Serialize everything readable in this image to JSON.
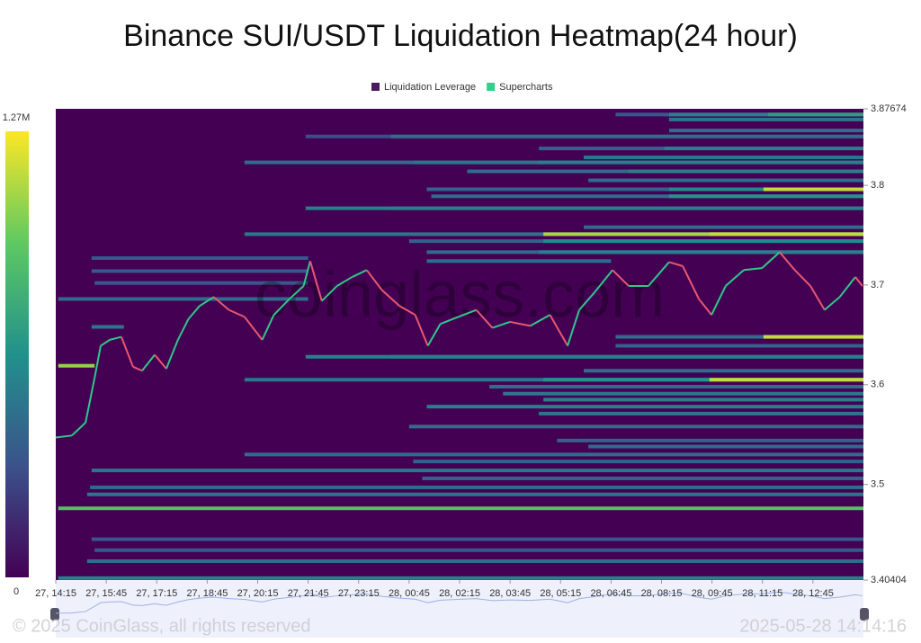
{
  "chart_data": {
    "type": "heatmap",
    "title": "Binance SUI/USDT Liquidation Heatmap(24 hour)",
    "watermark": "coinglass.com",
    "footer_left": "© 2025 CoinGlass, all rights reserved",
    "footer_right": "2025-05-28 14:14:16",
    "legend": [
      {
        "name": "Liquidation Leverage",
        "color": "#4b1a5f"
      },
      {
        "name": "Supercharts",
        "color": "#2ed18b"
      }
    ],
    "colormap": [
      "#440154",
      "#3b528b",
      "#21918c",
      "#5ec962",
      "#fde725"
    ],
    "colorbar_range": [
      0,
      1270000
    ],
    "colorbar_ticks": [
      {
        "value": 1270000,
        "label": "1.27M"
      },
      0
    ],
    "xlim": [
      0,
      16
    ],
    "xticks": [
      {
        "value": 0,
        "label": "27, 14:15"
      },
      {
        "value": 1,
        "label": "27, 15:45"
      },
      {
        "value": 2,
        "label": "27, 17:15"
      },
      {
        "value": 3,
        "label": "27, 18:45"
      },
      {
        "value": 4,
        "label": "27, 20:15"
      },
      {
        "value": 5,
        "label": "27, 21:45"
      },
      {
        "value": 6,
        "label": "27, 23:15"
      },
      {
        "value": 7,
        "label": "28, 00:45"
      },
      {
        "value": 8,
        "label": "28, 02:15"
      },
      {
        "value": 9,
        "label": "28, 03:45"
      },
      {
        "value": 10,
        "label": "28, 05:15"
      },
      {
        "value": 11,
        "label": "28, 06:45"
      },
      {
        "value": 12,
        "label": "28, 08:15"
      },
      {
        "value": 13,
        "label": "28, 09:45"
      },
      {
        "value": 14,
        "label": "28, 11:15"
      },
      {
        "value": 15,
        "label": "28, 12:45"
      }
    ],
    "ylim": [
      3.40404,
      3.87674
    ],
    "yticks": [
      3.40404,
      3.5,
      3.6,
      3.7,
      3.8,
      3.87674
    ],
    "bands": [
      {
        "price": 3.871,
        "start": 11.09,
        "end": 16,
        "value": 350000
      },
      {
        "price": 3.871,
        "start": 12.15,
        "end": 16,
        "value": 550000
      },
      {
        "price": 3.871,
        "start": 14.11,
        "end": 16,
        "value": 700000
      },
      {
        "price": 3.866,
        "start": 12.15,
        "end": 16,
        "value": 500000
      },
      {
        "price": 3.855,
        "start": 12.15,
        "end": 16,
        "value": 450000
      },
      {
        "price": 3.849,
        "start": 4.95,
        "end": 16,
        "value": 300000
      },
      {
        "price": 3.849,
        "start": 6.64,
        "end": 16,
        "value": 450000
      },
      {
        "price": 3.837,
        "start": 9.57,
        "end": 16,
        "value": 400000
      },
      {
        "price": 3.837,
        "start": 12.06,
        "end": 16,
        "value": 550000
      },
      {
        "price": 3.828,
        "start": 10.46,
        "end": 16,
        "value": 500000
      },
      {
        "price": 3.823,
        "start": 3.74,
        "end": 16,
        "value": 450000
      },
      {
        "price": 3.823,
        "start": 7.08,
        "end": 16,
        "value": 500000
      },
      {
        "price": 3.823,
        "start": 9.57,
        "end": 16,
        "value": 550000
      },
      {
        "price": 3.814,
        "start": 8.15,
        "end": 16,
        "value": 450000
      },
      {
        "price": 3.814,
        "start": 11.35,
        "end": 16,
        "value": 550000
      },
      {
        "price": 3.805,
        "start": 10.55,
        "end": 16,
        "value": 450000
      },
      {
        "price": 3.796,
        "start": 7.35,
        "end": 16,
        "value": 400000
      },
      {
        "price": 3.796,
        "start": 12.15,
        "end": 16,
        "value": 600000
      },
      {
        "price": 3.796,
        "start": 14.02,
        "end": 16,
        "value": 1150000
      },
      {
        "price": 3.789,
        "start": 7.44,
        "end": 16,
        "value": 450000
      },
      {
        "price": 3.789,
        "start": 12.15,
        "end": 16,
        "value": 650000
      },
      {
        "price": 3.777,
        "start": 4.95,
        "end": 16,
        "value": 550000
      },
      {
        "price": 3.777,
        "start": 6.64,
        "end": 16,
        "value": 550000
      },
      {
        "price": 3.758,
        "start": 10.46,
        "end": 16,
        "value": 450000
      },
      {
        "price": 3.751,
        "start": 3.74,
        "end": 16,
        "value": 500000
      },
      {
        "price": 3.751,
        "start": 9.66,
        "end": 16,
        "value": 1100000
      },
      {
        "price": 3.751,
        "start": 12.95,
        "end": 16,
        "value": 1150000
      },
      {
        "price": 3.744,
        "start": 7.0,
        "end": 16,
        "value": 400000
      },
      {
        "price": 3.744,
        "start": 9.66,
        "end": 16,
        "value": 600000
      },
      {
        "price": 3.733,
        "start": 7.35,
        "end": 16,
        "value": 450000
      },
      {
        "price": 3.733,
        "start": 9.57,
        "end": 16,
        "value": 550000
      },
      {
        "price": 3.727,
        "start": 0.71,
        "end": 5.0,
        "value": 350000
      },
      {
        "price": 3.724,
        "start": 7.35,
        "end": 11.0,
        "value": 450000
      },
      {
        "price": 3.714,
        "start": 0.71,
        "end": 5.0,
        "value": 350000
      },
      {
        "price": 3.702,
        "start": 0.77,
        "end": 5.0,
        "value": 350000
      },
      {
        "price": 3.686,
        "start": 0.05,
        "end": 5.0,
        "value": 450000
      },
      {
        "price": 3.658,
        "start": 0.71,
        "end": 1.35,
        "value": 500000
      },
      {
        "price": 3.648,
        "start": 11.09,
        "end": 16,
        "value": 450000
      },
      {
        "price": 3.648,
        "start": 14.02,
        "end": 16,
        "value": 1150000
      },
      {
        "price": 3.639,
        "start": 11.09,
        "end": 16,
        "value": 400000
      },
      {
        "price": 3.628,
        "start": 4.95,
        "end": 16,
        "value": 550000
      },
      {
        "price": 3.628,
        "start": 6.64,
        "end": 16,
        "value": 550000
      },
      {
        "price": 3.619,
        "start": 0.05,
        "end": 0.77,
        "value": 1050000
      },
      {
        "price": 3.614,
        "start": 10.46,
        "end": 16,
        "value": 450000
      },
      {
        "price": 3.605,
        "start": 3.74,
        "end": 16,
        "value": 500000
      },
      {
        "price": 3.605,
        "start": 9.66,
        "end": 16,
        "value": 650000
      },
      {
        "price": 3.605,
        "start": 12.95,
        "end": 16,
        "value": 1150000
      },
      {
        "price": 3.598,
        "start": 8.59,
        "end": 16,
        "value": 450000
      },
      {
        "price": 3.591,
        "start": 8.86,
        "end": 16,
        "value": 500000
      },
      {
        "price": 3.585,
        "start": 9.66,
        "end": 16,
        "value": 550000
      },
      {
        "price": 3.578,
        "start": 7.35,
        "end": 16,
        "value": 550000
      },
      {
        "price": 3.571,
        "start": 9.57,
        "end": 16,
        "value": 500000
      },
      {
        "price": 3.558,
        "start": 7.0,
        "end": 16,
        "value": 450000
      },
      {
        "price": 3.544,
        "start": 9.93,
        "end": 16,
        "value": 400000
      },
      {
        "price": 3.538,
        "start": 10.55,
        "end": 16,
        "value": 450000
      },
      {
        "price": 3.53,
        "start": 3.74,
        "end": 16,
        "value": 450000
      },
      {
        "price": 3.523,
        "start": 7.08,
        "end": 16,
        "value": 400000
      },
      {
        "price": 3.514,
        "start": 0.71,
        "end": 16,
        "value": 500000
      },
      {
        "price": 3.506,
        "start": 7.26,
        "end": 16,
        "value": 400000
      },
      {
        "price": 3.497,
        "start": 0.68,
        "end": 16,
        "value": 450000
      },
      {
        "price": 3.49,
        "start": 0.62,
        "end": 16,
        "value": 500000
      },
      {
        "price": 3.476,
        "start": 0.05,
        "end": 16,
        "value": 900000
      },
      {
        "price": 3.445,
        "start": 0.71,
        "end": 16,
        "value": 350000
      },
      {
        "price": 3.434,
        "start": 0.77,
        "end": 16,
        "value": 350000
      },
      {
        "price": 3.423,
        "start": 0.62,
        "end": 16,
        "value": 450000
      },
      {
        "price": 3.406,
        "start": 0.05,
        "end": 16,
        "value": 550000
      }
    ],
    "price": {
      "up_color": "#2fc78a",
      "down_color": "#e8576e",
      "x": [
        0,
        0.32,
        0.59,
        0.77,
        0.89,
        1.07,
        1.3,
        1.53,
        1.71,
        1.96,
        2.19,
        2.42,
        2.63,
        2.85,
        3.13,
        3.43,
        3.74,
        4.09,
        4.32,
        4.63,
        4.91,
        5.04,
        5.27,
        5.57,
        5.87,
        6.16,
        6.46,
        6.81,
        7.12,
        7.37,
        7.62,
        7.97,
        8.33,
        8.65,
        9.0,
        9.4,
        9.79,
        10.14,
        10.37,
        10.68,
        11.03,
        11.35,
        11.74,
        12.15,
        12.42,
        12.74,
        12.99,
        13.27,
        13.63,
        13.99,
        14.34,
        14.64,
        14.95,
        15.23,
        15.53,
        15.84,
        15.98
      ],
      "values": [
        3.547,
        3.549,
        3.562,
        3.607,
        3.639,
        3.645,
        3.648,
        3.618,
        3.614,
        3.63,
        3.616,
        3.645,
        3.666,
        3.679,
        3.688,
        3.675,
        3.668,
        3.645,
        3.67,
        3.686,
        3.699,
        3.724,
        3.684,
        3.699,
        3.708,
        3.715,
        3.695,
        3.679,
        3.67,
        3.639,
        3.661,
        3.668,
        3.675,
        3.657,
        3.663,
        3.659,
        3.67,
        3.639,
        3.675,
        3.693,
        3.715,
        3.699,
        3.699,
        3.723,
        3.719,
        3.686,
        3.67,
        3.699,
        3.715,
        3.717,
        3.733,
        3.715,
        3.699,
        3.675,
        3.688,
        3.708,
        3.699
      ]
    }
  }
}
